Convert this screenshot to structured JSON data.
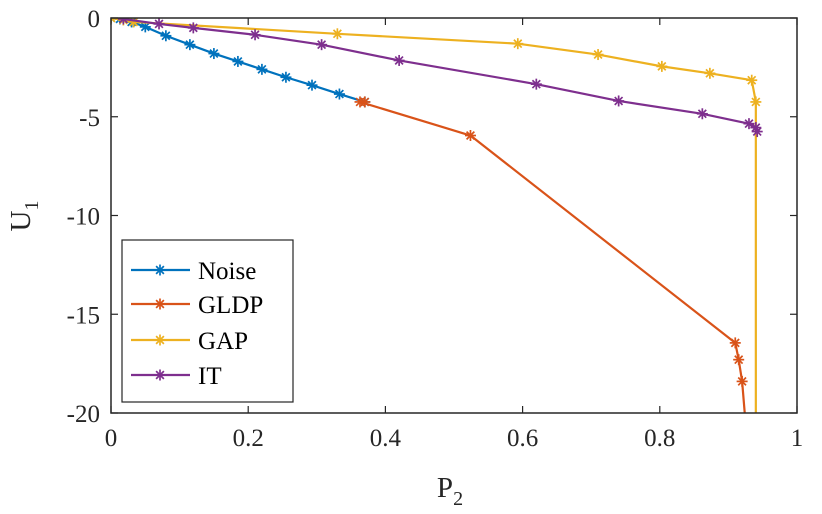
{
  "chart_data": {
    "type": "line",
    "title": "",
    "xlabel": "P",
    "xlabel_sub": "2",
    "ylabel": "U",
    "ylabel_sub": "1",
    "xlim": [
      0,
      1
    ],
    "ylim": [
      -20,
      0
    ],
    "xticks": [
      0,
      0.2,
      0.4,
      0.6,
      0.8,
      1
    ],
    "xtick_labels": [
      "0",
      "0.2",
      "0.4",
      "0.6",
      "0.8",
      "1"
    ],
    "yticks": [
      0,
      -5,
      -10,
      -15,
      -20
    ],
    "ytick_labels": [
      "0",
      "-5",
      "-10",
      "-15",
      "-20"
    ],
    "grid": false,
    "legend_position": "bottom-left",
    "marker": "asterisk",
    "series": [
      {
        "name": "Noise",
        "color": "#0072BD",
        "points": [
          [
            0.0,
            0.0
          ],
          [
            0.013,
            -0.05
          ],
          [
            0.03,
            -0.2
          ],
          [
            0.05,
            -0.45
          ],
          [
            0.08,
            -0.9
          ],
          [
            0.115,
            -1.35
          ],
          [
            0.15,
            -1.8
          ],
          [
            0.185,
            -2.2
          ],
          [
            0.22,
            -2.6
          ],
          [
            0.255,
            -3.0
          ],
          [
            0.293,
            -3.4
          ],
          [
            0.333,
            -3.85
          ],
          [
            0.37,
            -4.25
          ]
        ]
      },
      {
        "name": "GLDP",
        "color": "#D95319",
        "points": [
          [
            0.37,
            -4.25
          ],
          [
            0.363,
            -4.25
          ],
          [
            0.524,
            -5.95
          ],
          [
            0.91,
            -16.45
          ],
          [
            0.915,
            -17.3
          ],
          [
            0.92,
            -18.4
          ],
          [
            0.925,
            -20.5
          ]
        ]
      },
      {
        "name": "GAP",
        "color": "#EDB120",
        "points": [
          [
            0.0,
            0.0
          ],
          [
            0.018,
            -0.1
          ],
          [
            0.033,
            -0.2
          ],
          [
            0.33,
            -0.8
          ],
          [
            0.593,
            -1.3
          ],
          [
            0.71,
            -1.85
          ],
          [
            0.803,
            -2.45
          ],
          [
            0.873,
            -2.8
          ],
          [
            0.934,
            -3.15
          ],
          [
            0.94,
            -4.25
          ],
          [
            0.94,
            -20.5
          ]
        ]
      },
      {
        "name": "IT",
        "color": "#7E2F8E",
        "points": [
          [
            0.018,
            -0.05
          ],
          [
            0.07,
            -0.3
          ],
          [
            0.12,
            -0.5
          ],
          [
            0.21,
            -0.85
          ],
          [
            0.307,
            -1.35
          ],
          [
            0.42,
            -2.15
          ],
          [
            0.62,
            -3.35
          ],
          [
            0.74,
            -4.2
          ],
          [
            0.862,
            -4.85
          ],
          [
            0.93,
            -5.35
          ],
          [
            0.94,
            -5.55
          ],
          [
            0.942,
            -5.75
          ]
        ]
      }
    ]
  }
}
